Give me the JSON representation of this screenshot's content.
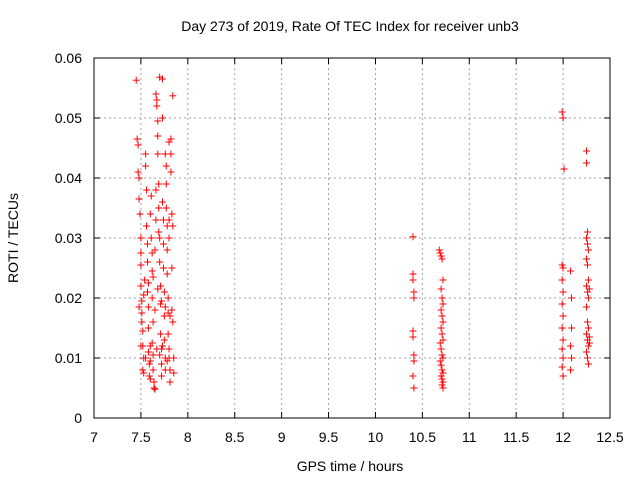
{
  "chart_data": {
    "type": "scatter",
    "title": "Day 273 of 2019, Rate Of TEC Index for receiver unb3",
    "xlabel": "GPS time / hours",
    "ylabel": "ROTI / TECUs",
    "xlim": [
      7,
      12.5
    ],
    "ylim": [
      0,
      0.06
    ],
    "x_ticks": [
      7,
      7.5,
      8,
      8.5,
      9,
      9.5,
      10,
      10.5,
      11,
      11.5,
      12,
      12.5
    ],
    "x_tick_labels": [
      "7",
      "7.5",
      "8",
      "8.5",
      "9",
      "9.5",
      "10",
      "10.5",
      "11",
      "11.5",
      "12",
      "12.5"
    ],
    "y_ticks": [
      0,
      0.01,
      0.02,
      0.03,
      0.04,
      0.05,
      0.06
    ],
    "y_tick_labels": [
      "0",
      "0.01",
      "0.02",
      "0.03",
      "0.04",
      "0.05",
      "0.06"
    ],
    "grid": true,
    "marker": "+",
    "series": [
      {
        "name": "ROTI",
        "color": "#ff0000",
        "points": [
          [
            7.45,
            0.0563
          ],
          [
            7.46,
            0.0465
          ],
          [
            7.47,
            0.0455
          ],
          [
            7.47,
            0.041
          ],
          [
            7.48,
            0.04
          ],
          [
            7.48,
            0.0365
          ],
          [
            7.49,
            0.034
          ],
          [
            7.5,
            0.03
          ],
          [
            7.5,
            0.0275
          ],
          [
            7.5,
            0.0255
          ],
          [
            7.5,
            0.022
          ],
          [
            7.51,
            0.0195
          ],
          [
            7.51,
            0.0175
          ],
          [
            7.51,
            0.016
          ],
          [
            7.52,
            0.0145
          ],
          [
            7.52,
            0.012
          ],
          [
            7.52,
            0.008
          ],
          [
            7.53,
            0.0075
          ],
          [
            7.53,
            0.01
          ],
          [
            7.54,
            0.023
          ],
          [
            7.55,
            0.044
          ],
          [
            7.55,
            0.042
          ],
          [
            7.56,
            0.038
          ],
          [
            7.56,
            0.032
          ],
          [
            7.57,
            0.029
          ],
          [
            7.57,
            0.026
          ],
          [
            7.57,
            0.021
          ],
          [
            7.58,
            0.0185
          ],
          [
            7.58,
            0.015
          ],
          [
            7.58,
            0.011
          ],
          [
            7.59,
            0.009
          ],
          [
            7.59,
            0.007
          ],
          [
            7.6,
            0.0065
          ],
          [
            7.6,
            0.012
          ],
          [
            7.6,
            0.034
          ],
          [
            7.61,
            0.037
          ],
          [
            7.61,
            0.03
          ],
          [
            7.62,
            0.0275
          ],
          [
            7.62,
            0.0245
          ],
          [
            7.62,
            0.02
          ],
          [
            7.63,
            0.016
          ],
          [
            7.63,
            0.0105
          ],
          [
            7.63,
            0.008
          ],
          [
            7.64,
            0.006
          ],
          [
            7.64,
            0.005
          ],
          [
            7.65,
            0.0048
          ],
          [
            7.65,
            0.018
          ],
          [
            7.65,
            0.028
          ],
          [
            7.66,
            0.033
          ],
          [
            7.66,
            0.038
          ],
          [
            7.66,
            0.054
          ],
          [
            7.67,
            0.053
          ],
          [
            7.67,
            0.052
          ],
          [
            7.68,
            0.0495
          ],
          [
            7.68,
            0.047
          ],
          [
            7.68,
            0.044
          ],
          [
            7.69,
            0.039
          ],
          [
            7.69,
            0.035
          ],
          [
            7.69,
            0.031
          ],
          [
            7.7,
            0.0568
          ],
          [
            7.7,
            0.03
          ],
          [
            7.7,
            0.026
          ],
          [
            7.71,
            0.022
          ],
          [
            7.71,
            0.019
          ],
          [
            7.71,
            0.014
          ],
          [
            7.72,
            0.0115
          ],
          [
            7.72,
            0.009
          ],
          [
            7.72,
            0.007
          ],
          [
            7.73,
            0.0565
          ],
          [
            7.73,
            0.05
          ],
          [
            7.73,
            0.036
          ],
          [
            7.74,
            0.033
          ],
          [
            7.74,
            0.029
          ],
          [
            7.74,
            0.025
          ],
          [
            7.75,
            0.021
          ],
          [
            7.75,
            0.017
          ],
          [
            7.75,
            0.013
          ],
          [
            7.76,
            0.01
          ],
          [
            7.76,
            0.008
          ],
          [
            7.76,
            0.044
          ],
          [
            7.77,
            0.042
          ],
          [
            7.77,
            0.039
          ],
          [
            7.77,
            0.035
          ],
          [
            7.78,
            0.032
          ],
          [
            7.78,
            0.028
          ],
          [
            7.78,
            0.024
          ],
          [
            7.79,
            0.02
          ],
          [
            7.79,
            0.0175
          ],
          [
            7.79,
            0.014
          ],
          [
            7.8,
            0.046
          ],
          [
            7.8,
            0.033
          ],
          [
            7.8,
            0.03
          ],
          [
            7.8,
            0.01
          ],
          [
            7.81,
            0.008
          ],
          [
            7.81,
            0.006
          ],
          [
            7.82,
            0.0465
          ],
          [
            7.82,
            0.044
          ],
          [
            7.82,
            0.041
          ],
          [
            7.83,
            0.034
          ],
          [
            7.83,
            0.025
          ],
          [
            7.83,
            0.018
          ],
          [
            7.84,
            0.0537
          ],
          [
            7.84,
            0.032
          ],
          [
            7.84,
            0.016
          ],
          [
            7.85,
            0.01
          ],
          [
            7.85,
            0.0075
          ],
          [
            7.5,
            0.012
          ],
          [
            7.55,
            0.01
          ],
          [
            7.6,
            0.0095
          ],
          [
            7.62,
            0.0125
          ],
          [
            7.67,
            0.0115
          ],
          [
            7.7,
            0.0105
          ],
          [
            7.73,
            0.012
          ],
          [
            7.78,
            0.0095
          ],
          [
            7.8,
            0.0115
          ],
          [
            7.48,
            0.0185
          ],
          [
            7.53,
            0.0205
          ],
          [
            7.58,
            0.0225
          ],
          [
            7.63,
            0.0235
          ],
          [
            7.68,
            0.0215
          ],
          [
            7.72,
            0.0195
          ],
          [
            7.76,
            0.0185
          ],
          [
            7.81,
            0.017
          ],
          [
            10.4,
            0.0302
          ],
          [
            10.4,
            0.024
          ],
          [
            10.4,
            0.023
          ],
          [
            10.41,
            0.021
          ],
          [
            10.41,
            0.02
          ],
          [
            10.4,
            0.0145
          ],
          [
            10.4,
            0.0135
          ],
          [
            10.41,
            0.0105
          ],
          [
            10.41,
            0.0095
          ],
          [
            10.4,
            0.007
          ],
          [
            10.41,
            0.005
          ],
          [
            10.68,
            0.028
          ],
          [
            10.69,
            0.0275
          ],
          [
            10.7,
            0.027
          ],
          [
            10.71,
            0.0265
          ],
          [
            10.72,
            0.023
          ],
          [
            10.7,
            0.0215
          ],
          [
            10.71,
            0.02
          ],
          [
            10.72,
            0.019
          ],
          [
            10.7,
            0.018
          ],
          [
            10.71,
            0.017
          ],
          [
            10.72,
            0.016
          ],
          [
            10.7,
            0.015
          ],
          [
            10.71,
            0.014
          ],
          [
            10.72,
            0.013
          ],
          [
            10.69,
            0.0125
          ],
          [
            10.7,
            0.0115
          ],
          [
            10.71,
            0.0105
          ],
          [
            10.72,
            0.01
          ],
          [
            10.69,
            0.0095
          ],
          [
            10.7,
            0.0088
          ],
          [
            10.71,
            0.008
          ],
          [
            10.72,
            0.0075
          ],
          [
            10.7,
            0.007
          ],
          [
            10.71,
            0.0065
          ],
          [
            10.72,
            0.006
          ],
          [
            10.71,
            0.0055
          ],
          [
            10.72,
            0.005
          ],
          [
            11.99,
            0.051
          ],
          [
            12.0,
            0.05
          ],
          [
            12.01,
            0.0415
          ],
          [
            11.99,
            0.0255
          ],
          [
            12.0,
            0.025
          ],
          [
            11.99,
            0.023
          ],
          [
            12.0,
            0.021
          ],
          [
            11.99,
            0.019
          ],
          [
            12.0,
            0.017
          ],
          [
            11.99,
            0.015
          ],
          [
            12.0,
            0.013
          ],
          [
            11.99,
            0.0115
          ],
          [
            12.0,
            0.01
          ],
          [
            11.99,
            0.0085
          ],
          [
            12.0,
            0.007
          ],
          [
            12.08,
            0.0245
          ],
          [
            12.09,
            0.02
          ],
          [
            12.09,
            0.015
          ],
          [
            12.08,
            0.012
          ],
          [
            12.09,
            0.01
          ],
          [
            12.08,
            0.008
          ],
          [
            12.25,
            0.0445
          ],
          [
            12.25,
            0.0425
          ],
          [
            12.26,
            0.031
          ],
          [
            12.25,
            0.03
          ],
          [
            12.26,
            0.029
          ],
          [
            12.27,
            0.028
          ],
          [
            12.25,
            0.0265
          ],
          [
            12.26,
            0.0255
          ],
          [
            12.27,
            0.023
          ],
          [
            12.25,
            0.022
          ],
          [
            12.26,
            0.021
          ],
          [
            12.27,
            0.02
          ],
          [
            12.25,
            0.0185
          ],
          [
            12.26,
            0.016
          ],
          [
            12.27,
            0.015
          ],
          [
            12.25,
            0.014
          ],
          [
            12.26,
            0.013
          ],
          [
            12.27,
            0.012
          ],
          [
            12.25,
            0.011
          ],
          [
            12.26,
            0.01
          ],
          [
            12.27,
            0.009
          ],
          [
            12.28,
            0.0125
          ],
          [
            12.28,
            0.0215
          ],
          [
            12.28,
            0.0135
          ]
        ]
      }
    ]
  }
}
